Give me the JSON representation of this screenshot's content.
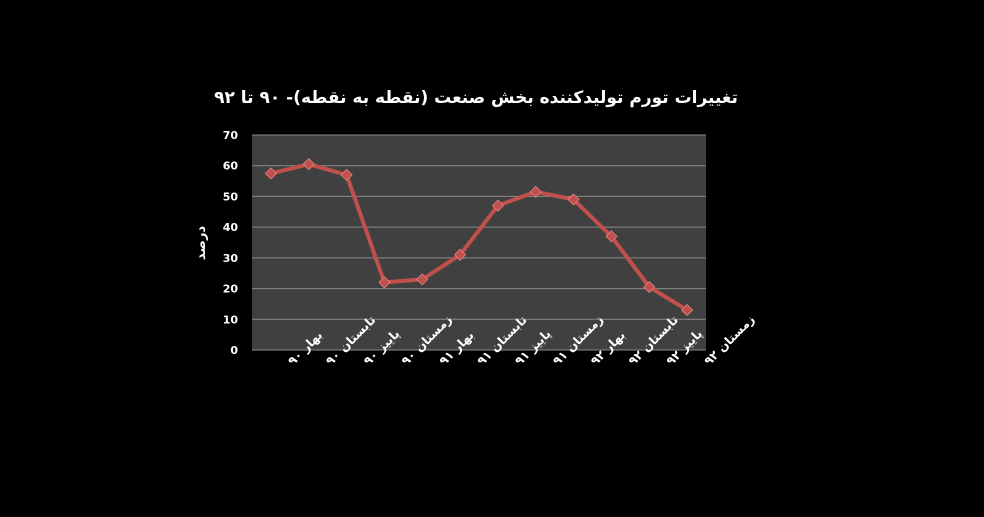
{
  "chart_data": {
    "type": "line",
    "title": "تغییرات تورم تولیدکننده بخش صنعت (نقطه به نقطه)- ۹۰ تا ۹۲",
    "xlabel": "",
    "ylabel": "درصد",
    "categories": [
      "بهار ۹۰",
      "تابستان ۹۰",
      "پاییز ۹۰",
      "زمستان ۹۰",
      "بهار ۹۱",
      "تابستان ۹۱",
      "پاییز ۹۱",
      "زمستان ۹۱",
      "بهار ۹۲",
      "تابستان ۹۲",
      "پاییز ۹۲",
      "زمستان ۹۲"
    ],
    "series": [
      {
        "values": [
          57.5,
          60.5,
          57,
          22,
          23,
          31,
          47,
          51.5,
          49,
          37,
          20.5,
          13
        ]
      }
    ],
    "ylim": [
      0,
      70
    ],
    "yticks": [
      0,
      10,
      20,
      30,
      40,
      50,
      60,
      70
    ],
    "grid": true,
    "legend": "none",
    "colors": {
      "page_background": "#000000",
      "plot_background": "#404040",
      "gridline": "#8a8a8a",
      "line": "#c0504d",
      "marker": "#c0504d",
      "text": "#ffffff"
    }
  }
}
